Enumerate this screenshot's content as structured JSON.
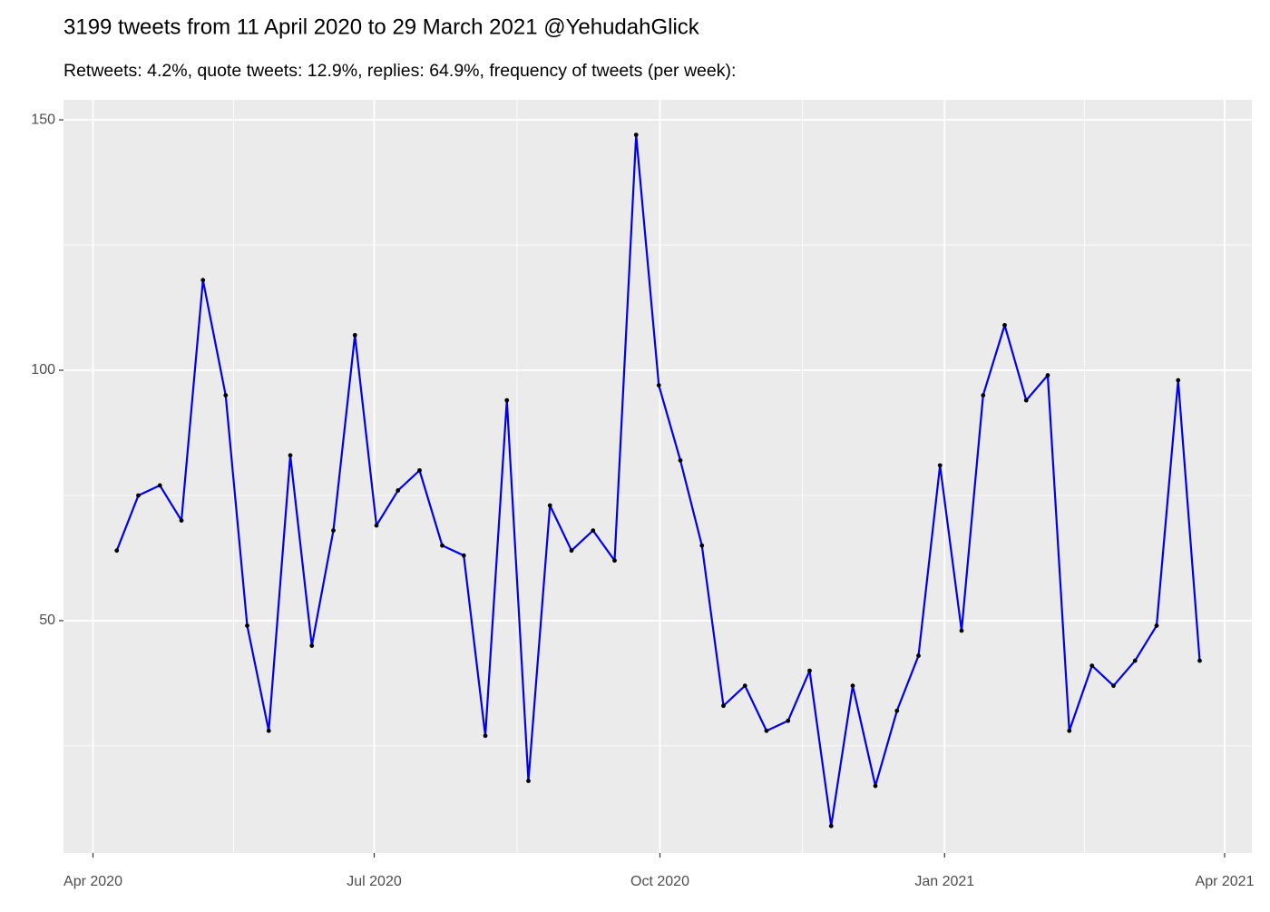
{
  "chart_data": {
    "type": "line",
    "title": "3199 tweets from 11 April 2020 to 29 March 2021 @YehudahGlick",
    "subtitle": "Retweets: 4.2%, quote tweets: 12.9%, replies: 64.9%, frequency of tweets (per week):",
    "x": [
      2020.27,
      2020.289,
      2020.308,
      2020.327,
      2020.346,
      2020.366,
      2020.385,
      2020.404,
      2020.423,
      2020.442,
      2020.461,
      2020.48,
      2020.499,
      2020.518,
      2020.537,
      2020.557,
      2020.576,
      2020.595,
      2020.614,
      2020.633,
      2020.652,
      2020.671,
      2020.69,
      2020.709,
      2020.728,
      2020.748,
      2020.767,
      2020.786,
      2020.805,
      2020.824,
      2020.843,
      2020.862,
      2020.881,
      2020.9,
      2020.919,
      2020.939,
      2020.958,
      2020.977,
      2020.996,
      2021.015,
      2021.034,
      2021.053,
      2021.072,
      2021.091,
      2021.11,
      2021.13,
      2021.149,
      2021.168,
      2021.187,
      2021.206,
      2021.225
    ],
    "series": [
      {
        "color": "#0000ee",
        "values": [
          64,
          75,
          77,
          70,
          118,
          95,
          49,
          28,
          83,
          45,
          68,
          107,
          69,
          76,
          80,
          65,
          63,
          27,
          94,
          18,
          73,
          64,
          68,
          62,
          147,
          97,
          82,
          65,
          33,
          37,
          28,
          30,
          40,
          9,
          37,
          17,
          32,
          43,
          81,
          48,
          95,
          109,
          94,
          99,
          28,
          41,
          37,
          42,
          49,
          98,
          42
        ]
      }
    ],
    "point_color": "#000000",
    "xlim": [
      2020.223,
      2021.271
    ],
    "xticks": [
      {
        "value": 2020.249,
        "label": "Apr 2020"
      },
      {
        "value": 2020.497,
        "label": "Jul 2020"
      },
      {
        "value": 2020.749,
        "label": "Oct 2020"
      },
      {
        "value": 2021.0,
        "label": "Jan 2021"
      },
      {
        "value": 2021.247,
        "label": "Apr 2021"
      }
    ],
    "ylim": [
      3.6,
      154
    ],
    "yticks": [
      50,
      100,
      150
    ],
    "grid": true
  }
}
